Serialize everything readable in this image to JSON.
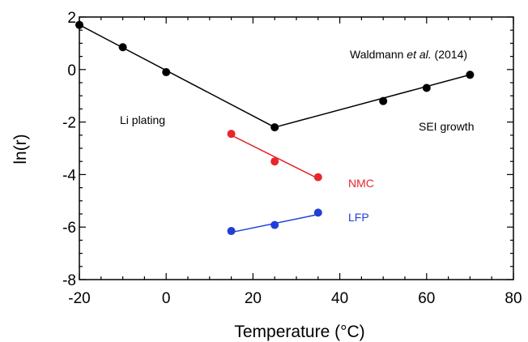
{
  "chart_data": {
    "type": "line",
    "xlabel": "Temperature (°C)",
    "ylabel": "ln(r)",
    "xlim": [
      -20,
      80
    ],
    "ylim": [
      -8,
      2
    ],
    "xticks": [
      -20,
      0,
      20,
      40,
      60,
      80
    ],
    "yticks": [
      -8,
      -6,
      -4,
      -2,
      0,
      2
    ],
    "x_tick_labels": [
      "-20",
      "0",
      "20",
      "40",
      "60",
      "80"
    ],
    "y_tick_labels": [
      "-8",
      "-6",
      "-4",
      "-2",
      "0",
      "2"
    ],
    "grid": false,
    "series": [
      {
        "name": "",
        "color": "#000000",
        "points": [
          [
            -20,
            1.7
          ],
          [
            -10,
            0.85
          ],
          [
            0,
            -0.1
          ],
          [
            25,
            -2.2
          ],
          [
            50,
            -1.2
          ],
          [
            60,
            -0.7
          ],
          [
            70,
            -0.2
          ]
        ],
        "fit_lines": [
          [
            [
              -20,
              1.7
            ],
            [
              25,
              -2.2
            ]
          ],
          [
            [
              25,
              -2.2
            ],
            [
              70,
              -0.2
            ]
          ]
        ]
      },
      {
        "name": "NMC",
        "color": "#e8262b",
        "points": [
          [
            15,
            -2.45
          ],
          [
            25,
            -3.5
          ],
          [
            35,
            -4.1
          ]
        ],
        "fit_lines": [
          [
            [
              15,
              -2.5
            ],
            [
              35,
              -4.15
            ]
          ]
        ]
      },
      {
        "name": "LFP",
        "color": "#1f3fd8",
        "points": [
          [
            15,
            -6.15
          ],
          [
            25,
            -5.92
          ],
          [
            35,
            -5.45
          ]
        ],
        "fit_lines": [
          [
            [
              15,
              -6.2
            ],
            [
              35,
              -5.52
            ]
          ]
        ]
      }
    ],
    "annotations": {
      "source": {
        "pre": "Waldmann ",
        "em": "et al.",
        "post": " (2014)"
      },
      "li_plating": "Li plating",
      "sei_growth": "SEI growth",
      "nmc": "NMC",
      "lfp": "LFP"
    },
    "annotation_colors": {
      "nmc": "#e8262b",
      "lfp": "#1f3fd8"
    }
  }
}
